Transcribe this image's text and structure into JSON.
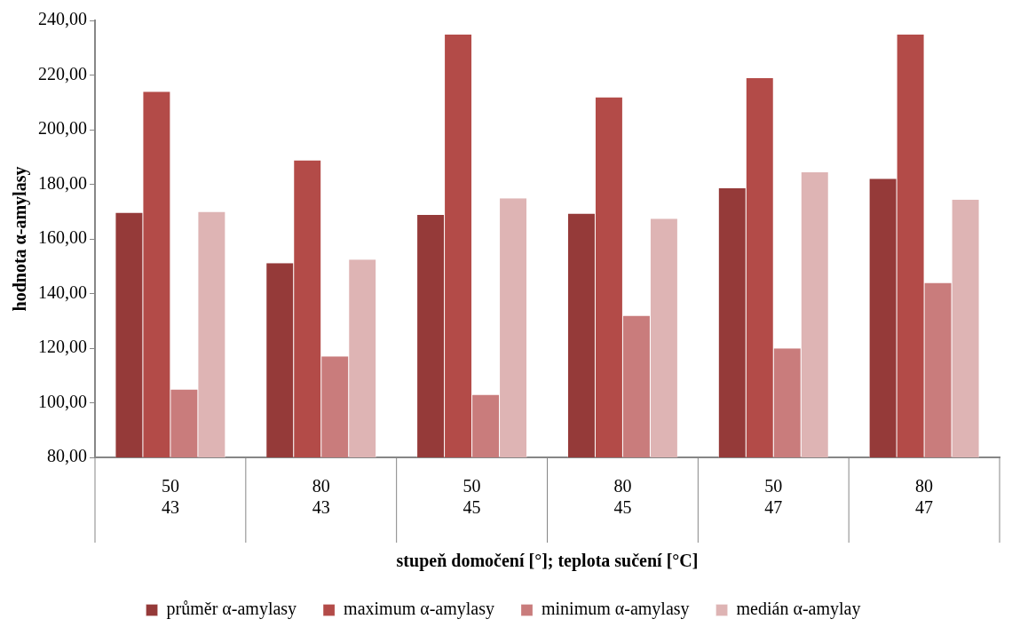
{
  "chart_data": {
    "type": "bar",
    "xlabel": "stupeň domočení [°]; teplota sučení [°C]",
    "ylabel": "hodnota α-amylasy",
    "categories": [
      "50\n43",
      "80\n43",
      "50\n45",
      "80\n45",
      "50\n47",
      "80\n47"
    ],
    "series": [
      {
        "name": "průměr α-amylasy",
        "color": "#953a39",
        "values": [
          169.6,
          151.1,
          168.8,
          169.3,
          178.5,
          182.0
        ]
      },
      {
        "name": "maximum α-amylasy",
        "color": "#b34b48",
        "values": [
          213.9,
          188.8,
          234.9,
          211.9,
          218.9,
          234.9
        ]
      },
      {
        "name": "minimum α-amylasy",
        "color": "#c97c7c",
        "values": [
          104.9,
          117.0,
          102.9,
          131.9,
          119.9,
          143.9
        ]
      },
      {
        "name": "medián α-amylay",
        "color": "#deb4b4",
        "values": [
          169.9,
          152.4,
          174.9,
          167.4,
          184.4,
          174.4
        ]
      }
    ],
    "ylim": [
      80,
      240
    ],
    "yticks": [
      {
        "value": 80,
        "label": "80,00"
      },
      {
        "value": 100,
        "label": "100,00"
      },
      {
        "value": 120,
        "label": "120,00"
      },
      {
        "value": 140,
        "label": "140,00"
      },
      {
        "value": 160,
        "label": "160,00"
      },
      {
        "value": 180,
        "label": "180,00"
      },
      {
        "value": 200,
        "label": "200,00"
      },
      {
        "value": 220,
        "label": "220,00"
      },
      {
        "value": 240,
        "label": "240,00"
      }
    ],
    "grid": false,
    "legend": "bottom"
  }
}
